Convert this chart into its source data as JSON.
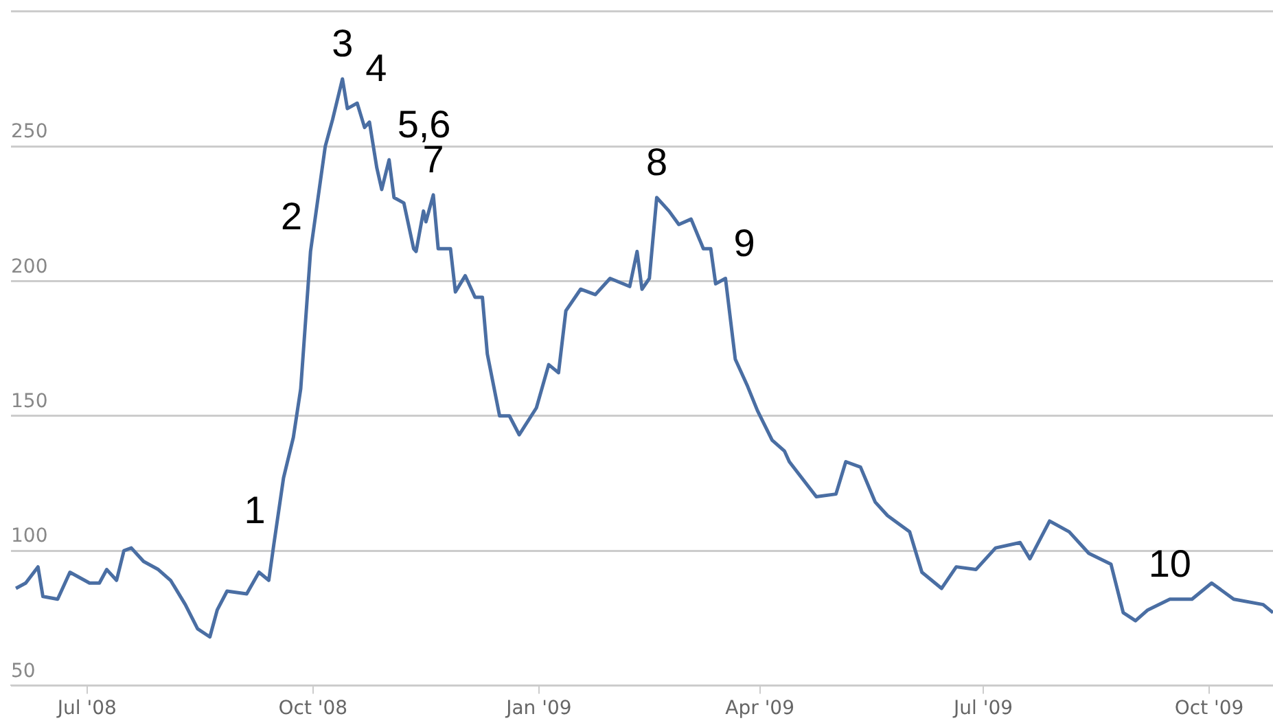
{
  "chart_data": {
    "type": "line",
    "x": [
      "2008-06-02",
      "2008-06-06",
      "2008-06-11",
      "2008-06-13",
      "2008-06-19",
      "2008-06-24",
      "2008-07-02",
      "2008-07-06",
      "2008-07-09",
      "2008-07-13",
      "2008-07-16",
      "2008-07-19",
      "2008-07-24",
      "2008-07-30",
      "2008-08-04",
      "2008-08-10",
      "2008-08-15",
      "2008-08-20",
      "2008-08-23",
      "2008-08-27",
      "2008-09-04",
      "2008-09-09",
      "2008-09-13",
      "2008-09-15",
      "2008-09-19",
      "2008-09-23",
      "2008-09-26",
      "2008-09-30",
      "2008-10-06",
      "2008-10-09",
      "2008-10-13",
      "2008-10-15",
      "2008-10-19",
      "2008-10-22",
      "2008-10-24",
      "2008-10-27",
      "2008-10-29",
      "2008-11-01",
      "2008-11-03",
      "2008-11-07",
      "2008-11-11",
      "2008-11-12",
      "2008-11-15",
      "2008-11-16",
      "2008-11-19",
      "2008-11-21",
      "2008-11-26",
      "2008-11-28",
      "2008-12-02",
      "2008-12-06",
      "2008-12-09",
      "2008-12-11",
      "2008-12-16",
      "2008-12-20",
      "2008-12-24",
      "2008-12-31",
      "2009-01-05",
      "2009-01-09",
      "2009-01-12",
      "2009-01-18",
      "2009-01-24",
      "2009-01-30",
      "2009-02-07",
      "2009-02-10",
      "2009-02-12",
      "2009-02-15",
      "2009-02-18",
      "2009-02-23",
      "2009-02-27",
      "2009-03-04",
      "2009-03-09",
      "2009-03-12",
      "2009-03-14",
      "2009-03-18",
      "2009-03-22",
      "2009-03-27",
      "2009-03-31",
      "2009-04-06",
      "2009-04-11",
      "2009-04-13",
      "2009-04-24",
      "2009-05-02",
      "2009-05-06",
      "2009-05-12",
      "2009-05-18",
      "2009-05-23",
      "2009-06-01",
      "2009-06-06",
      "2009-06-14",
      "2009-06-20",
      "2009-06-28",
      "2009-07-06",
      "2009-07-16",
      "2009-07-20",
      "2009-07-28",
      "2009-08-05",
      "2009-08-13",
      "2009-08-22",
      "2009-08-27",
      "2009-09-01",
      "2009-09-06",
      "2009-09-15",
      "2009-09-24",
      "2009-10-02",
      "2009-10-11",
      "2009-10-23",
      "2009-10-27"
    ],
    "series": [
      {
        "color": "#4a6ea3",
        "values": [
          86,
          88,
          94,
          83,
          82,
          92,
          88,
          88,
          93,
          89,
          100,
          101,
          96,
          93,
          89,
          80,
          71,
          68,
          78,
          85,
          84,
          92,
          89,
          102,
          127,
          142,
          160,
          211,
          250,
          260,
          275,
          264,
          266,
          257,
          259,
          242,
          234,
          245,
          231,
          229,
          212,
          211,
          226,
          222,
          232,
          212,
          212,
          196,
          202,
          194,
          194,
          173,
          150,
          150,
          143,
          153,
          169,
          166,
          189,
          197,
          195,
          201,
          198,
          211,
          197,
          201,
          231,
          226,
          221,
          223,
          212,
          212,
          199,
          201,
          171,
          161,
          152,
          141,
          137,
          133,
          120,
          121,
          133,
          131,
          118,
          113,
          107,
          92,
          86,
          94,
          93,
          101,
          103,
          97,
          111,
          107,
          99,
          95,
          77,
          74,
          78,
          82,
          82,
          88,
          82,
          80,
          77
        ]
      }
    ],
    "xlim": [
      "2008-05-31",
      "2009-10-27"
    ],
    "xticks": [
      {
        "value": "2008-07-01",
        "label": "Jul '08"
      },
      {
        "value": "2008-10-01",
        "label": "Oct '08"
      },
      {
        "value": "2009-01-01",
        "label": "Jan '09"
      },
      {
        "value": "2009-04-01",
        "label": "Apr '09"
      },
      {
        "value": "2009-07-01",
        "label": "Jul '09"
      },
      {
        "value": "2009-10-01",
        "label": "Oct '09"
      }
    ],
    "ylim": [
      50,
      300
    ],
    "yticks": [
      50,
      100,
      150,
      200,
      250,
      {
        "value": 300,
        "label": null
      }
    ],
    "grid": "y",
    "annotations": [
      {
        "text": "1",
        "x": "2008-09-15",
        "y": 102
      },
      {
        "text": "2",
        "x": "2008-09-30",
        "y": 211
      },
      {
        "text": "3",
        "x": "2008-10-13",
        "y": 275
      },
      {
        "text": "4",
        "x": "2008-10-19",
        "y": 266
      },
      {
        "text": "5,6",
        "x": "2008-11-01",
        "y": 245
      },
      {
        "text": "7",
        "x": "2008-11-19",
        "y": 232
      },
      {
        "text": "8",
        "x": "2009-02-18",
        "y": 231
      },
      {
        "text": "9",
        "x": "2009-03-18",
        "y": 201
      },
      {
        "text": "10",
        "x": "2009-09-15",
        "y": 82
      }
    ]
  }
}
